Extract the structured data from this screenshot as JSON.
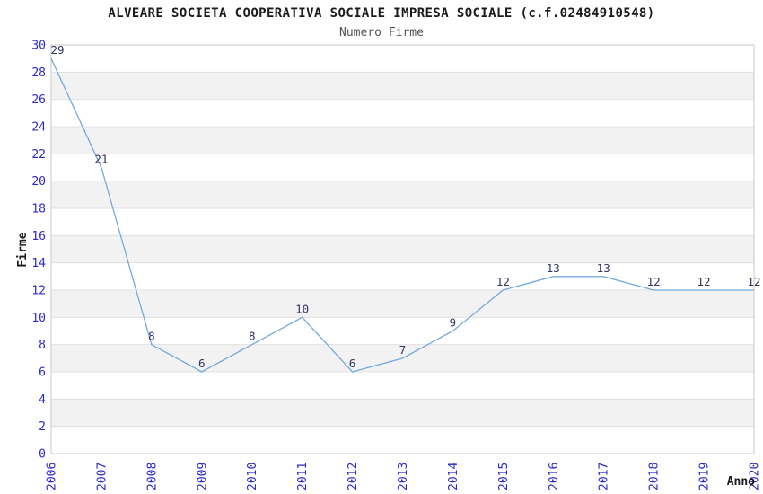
{
  "chart_data": {
    "type": "line",
    "title": "ALVEARE SOCIETA COOPERATIVA SOCIALE IMPRESA SOCIALE (c.f.02484910548)",
    "subtitle": "Numero Firme",
    "xlabel": "Anno",
    "ylabel": "Firme",
    "categories": [
      "2006",
      "2007",
      "2008",
      "2009",
      "2010",
      "2011",
      "2012",
      "2013",
      "2014",
      "2015",
      "2016",
      "2017",
      "2018",
      "2019",
      "2020"
    ],
    "series": [
      {
        "name": "Numero Firme",
        "values": [
          29,
          21,
          8,
          6,
          8,
          10,
          6,
          7,
          9,
          12,
          13,
          13,
          12,
          12,
          12
        ]
      }
    ],
    "ylim": [
      0,
      30
    ],
    "ytick_step": 2,
    "grid": true,
    "legend": "none",
    "point_labels_visible": true,
    "colors": {
      "line": "#74a9dd",
      "point_label": "#333366",
      "tick_label": "#2929cc",
      "axis_title": "#1a1a1a",
      "title": "#1a1a1a",
      "subtitle": "#555555",
      "band": "#f2f2f2",
      "gridline": "#e0e0e0",
      "plot_border": "#c9c9c9",
      "background": "#ffffff"
    }
  }
}
